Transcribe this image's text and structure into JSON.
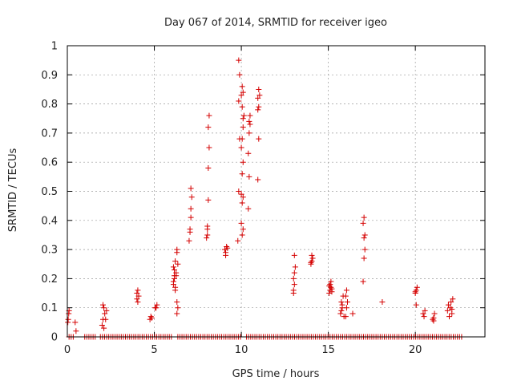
{
  "chart_data": {
    "type": "scatter",
    "title": "Day 067 of 2014, SRMTID for receiver igeo",
    "xlabel": "GPS time / hours",
    "ylabel": "SRMTID / TECUs",
    "xlim": [
      0,
      24
    ],
    "ylim": [
      0,
      1
    ],
    "x_ticks": [
      0,
      5,
      10,
      15,
      20
    ],
    "x_tick_labels": [
      "0",
      "5",
      "10",
      "15",
      "20"
    ],
    "y_ticks": [
      0,
      0.1,
      0.2,
      0.3,
      0.4,
      0.5,
      0.6,
      0.7,
      0.8,
      0.9,
      1
    ],
    "y_tick_labels": [
      "0",
      "0.1",
      "0.2",
      "0.3",
      "0.4",
      "0.5",
      "0.6",
      "0.7",
      "0.8",
      "0.9",
      "1"
    ],
    "grid": true,
    "marker": "+",
    "series_color": "#d40000",
    "series": [
      {
        "name": "SRMTID",
        "points": [
          [
            0.05,
            0.06
          ],
          [
            0.08,
            0.08
          ],
          [
            0.1,
            0.09
          ],
          [
            0.03,
            0.05
          ],
          [
            0.45,
            0.05
          ],
          [
            0.5,
            0.02
          ],
          [
            2.0,
            0.04
          ],
          [
            2.05,
            0.06
          ],
          [
            2.1,
            0.1
          ],
          [
            2.15,
            0.08
          ],
          [
            2.05,
            0.11
          ],
          [
            2.2,
            0.06
          ],
          [
            2.25,
            0.09
          ],
          [
            2.1,
            0.03
          ],
          [
            4.0,
            0.13
          ],
          [
            4.05,
            0.16
          ],
          [
            4.1,
            0.14
          ],
          [
            4.0,
            0.15
          ],
          [
            4.05,
            0.12
          ],
          [
            4.75,
            0.06
          ],
          [
            4.8,
            0.07
          ],
          [
            4.85,
            0.065
          ],
          [
            5.1,
            0.1
          ],
          [
            5.15,
            0.11
          ],
          [
            5.05,
            0.1
          ],
          [
            6.1,
            0.24
          ],
          [
            6.15,
            0.2
          ],
          [
            6.2,
            0.17
          ],
          [
            6.25,
            0.22
          ],
          [
            6.1,
            0.18
          ],
          [
            6.3,
            0.29
          ],
          [
            6.3,
            0.3
          ],
          [
            6.2,
            0.26
          ],
          [
            6.15,
            0.23
          ],
          [
            6.25,
            0.21
          ],
          [
            6.1,
            0.19
          ],
          [
            6.35,
            0.25
          ],
          [
            6.3,
            0.12
          ],
          [
            6.35,
            0.1
          ],
          [
            6.3,
            0.08
          ],
          [
            6.2,
            0.16
          ],
          [
            6.15,
            0.21
          ],
          [
            7.0,
            0.33
          ],
          [
            7.05,
            0.37
          ],
          [
            7.1,
            0.41
          ],
          [
            7.1,
            0.44
          ],
          [
            7.15,
            0.48
          ],
          [
            7.1,
            0.51
          ],
          [
            7.05,
            0.36
          ],
          [
            8.0,
            0.34
          ],
          [
            8.05,
            0.37
          ],
          [
            8.05,
            0.35
          ],
          [
            8.1,
            0.47
          ],
          [
            8.1,
            0.58
          ],
          [
            8.15,
            0.65
          ],
          [
            8.1,
            0.72
          ],
          [
            8.15,
            0.76
          ],
          [
            8.05,
            0.38
          ],
          [
            9.05,
            0.3
          ],
          [
            9.1,
            0.28
          ],
          [
            9.15,
            0.31
          ],
          [
            9.2,
            0.305
          ],
          [
            9.1,
            0.29
          ],
          [
            9.8,
            0.33
          ],
          [
            9.85,
            0.5
          ],
          [
            9.9,
            0.68
          ],
          [
            9.85,
            0.81
          ],
          [
            9.9,
            0.9
          ],
          [
            9.85,
            0.95
          ],
          [
            10.05,
            0.35
          ],
          [
            10.1,
            0.37
          ],
          [
            10.0,
            0.39
          ],
          [
            10.05,
            0.46
          ],
          [
            10.1,
            0.48
          ],
          [
            10.0,
            0.49
          ],
          [
            10.05,
            0.56
          ],
          [
            10.1,
            0.6
          ],
          [
            10.0,
            0.65
          ],
          [
            10.05,
            0.68
          ],
          [
            10.1,
            0.72
          ],
          [
            10.1,
            0.75
          ],
          [
            10.15,
            0.76
          ],
          [
            10.05,
            0.79
          ],
          [
            10.0,
            0.83
          ],
          [
            10.1,
            0.84
          ],
          [
            10.05,
            0.86
          ],
          [
            10.4,
            0.44
          ],
          [
            10.45,
            0.55
          ],
          [
            10.4,
            0.63
          ],
          [
            10.45,
            0.7
          ],
          [
            10.5,
            0.73
          ],
          [
            10.45,
            0.74
          ],
          [
            10.5,
            0.76
          ],
          [
            10.95,
            0.54
          ],
          [
            11.0,
            0.68
          ],
          [
            10.95,
            0.78
          ],
          [
            11.0,
            0.79
          ],
          [
            10.95,
            0.82
          ],
          [
            11.05,
            0.83
          ],
          [
            11.0,
            0.85
          ],
          [
            13.0,
            0.15
          ],
          [
            13.05,
            0.18
          ],
          [
            13.0,
            0.2
          ],
          [
            13.05,
            0.22
          ],
          [
            13.1,
            0.24
          ],
          [
            13.05,
            0.28
          ],
          [
            13.0,
            0.16
          ],
          [
            14.0,
            0.25
          ],
          [
            14.05,
            0.26
          ],
          [
            14.1,
            0.27
          ],
          [
            14.05,
            0.28
          ],
          [
            14.0,
            0.255
          ],
          [
            15.05,
            0.15
          ],
          [
            15.1,
            0.16
          ],
          [
            15.15,
            0.17
          ],
          [
            15.1,
            0.18
          ],
          [
            15.2,
            0.165
          ],
          [
            15.15,
            0.19
          ],
          [
            15.05,
            0.175
          ],
          [
            15.2,
            0.155
          ],
          [
            15.7,
            0.08
          ],
          [
            15.75,
            0.09
          ],
          [
            15.8,
            0.1
          ],
          [
            15.75,
            0.12
          ],
          [
            15.85,
            0.14
          ],
          [
            15.8,
            0.11
          ],
          [
            15.9,
            0.07
          ],
          [
            16.0,
            0.07
          ],
          [
            16.05,
            0.1
          ],
          [
            16.1,
            0.12
          ],
          [
            16.05,
            0.16
          ],
          [
            16.0,
            0.14
          ],
          [
            16.4,
            0.08
          ],
          [
            17.0,
            0.19
          ],
          [
            17.05,
            0.27
          ],
          [
            17.1,
            0.3
          ],
          [
            17.05,
            0.34
          ],
          [
            17.1,
            0.35
          ],
          [
            17.0,
            0.39
          ],
          [
            17.05,
            0.41
          ],
          [
            18.1,
            0.12
          ],
          [
            20.0,
            0.15
          ],
          [
            20.05,
            0.16
          ],
          [
            20.1,
            0.17
          ],
          [
            20.05,
            0.11
          ],
          [
            20.0,
            0.155
          ],
          [
            20.5,
            0.07
          ],
          [
            20.55,
            0.09
          ],
          [
            20.45,
            0.08
          ],
          [
            21.0,
            0.06
          ],
          [
            21.05,
            0.065
          ],
          [
            21.1,
            0.08
          ],
          [
            21.05,
            0.055
          ],
          [
            21.85,
            0.09
          ],
          [
            21.9,
            0.11
          ],
          [
            21.95,
            0.07
          ],
          [
            22.0,
            0.1
          ],
          [
            22.05,
            0.12
          ],
          [
            22.1,
            0.08
          ],
          [
            22.15,
            0.13
          ],
          [
            22.1,
            0.095
          ]
        ],
        "zero_baseline": [
          [
            0.1,
            0.45
          ],
          [
            1.0,
            1.6
          ],
          [
            1.9,
            6.0
          ],
          [
            6.35,
            9.95
          ],
          [
            10.3,
            22.7
          ]
        ]
      }
    ]
  }
}
